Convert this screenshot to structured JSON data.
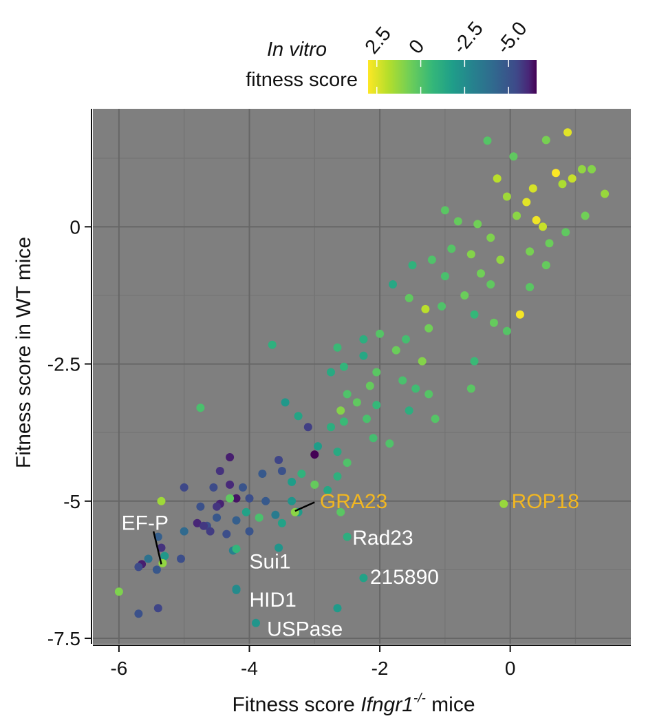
{
  "chart_data": {
    "type": "scatter",
    "xlabel_prefix": "Fitness score ",
    "xlabel_gene": "Ifngr1",
    "xlabel_superscript": "-/-",
    "xlabel_suffix": " mice",
    "ylabel": "Fitness score in WT mice",
    "xlim": [
      -6.4,
      1.85
    ],
    "ylim": [
      -7.6,
      2.15
    ],
    "x_ticks": [
      -6,
      -4,
      -2,
      0
    ],
    "x_tick_labels": [
      "-6",
      "-4",
      "-2",
      "0"
    ],
    "y_ticks": [
      0,
      -2.5,
      -5,
      -7.5
    ],
    "y_tick_labels": [
      "0",
      "-2.5",
      "-5",
      "-7.5"
    ],
    "grid": true,
    "background_color": "#7f7f7f",
    "colorbar": {
      "title_line1": "In vitro",
      "title_line2": "fitness score",
      "tick_labels": [
        "2.5",
        "0",
        "-2.5",
        "-5.0"
      ],
      "tick_values": [
        2.5,
        0,
        -2.5,
        -5.0
      ],
      "range": [
        3.0,
        -6.6
      ],
      "colormap": "viridis (reversed)",
      "placement": "top"
    },
    "points": [
      {
        "x": 0.88,
        "y": 1.72,
        "c": 2.6
      },
      {
        "x": -0.35,
        "y": 1.57,
        "c": 0.4
      },
      {
        "x": 0.55,
        "y": 1.58,
        "c": 1.0
      },
      {
        "x": 0.05,
        "y": 1.28,
        "c": 0.6
      },
      {
        "x": 1.1,
        "y": 1.05,
        "c": 1.4
      },
      {
        "x": 1.25,
        "y": 1.05,
        "c": 1.2
      },
      {
        "x": 0.7,
        "y": 0.98,
        "c": 3.0
      },
      {
        "x": 0.95,
        "y": 0.88,
        "c": 2.2
      },
      {
        "x": -0.2,
        "y": 0.88,
        "c": 2.0
      },
      {
        "x": 0.8,
        "y": 0.78,
        "c": 1.8
      },
      {
        "x": 1.45,
        "y": 0.6,
        "c": 1.5
      },
      {
        "x": 0.35,
        "y": 0.7,
        "c": 2.4
      },
      {
        "x": -0.05,
        "y": 0.55,
        "c": 1.6
      },
      {
        "x": 0.25,
        "y": 0.45,
        "c": 2.6
      },
      {
        "x": 0.4,
        "y": 0.12,
        "c": 2.8
      },
      {
        "x": 0.5,
        "y": 0.0,
        "c": 2.2
      },
      {
        "x": 0.1,
        "y": 0.2,
        "c": 1.3
      },
      {
        "x": -0.5,
        "y": 0.05,
        "c": 0.9
      },
      {
        "x": -0.8,
        "y": 0.1,
        "c": 0.7
      },
      {
        "x": -1.0,
        "y": 0.3,
        "c": 0.5
      },
      {
        "x": -0.3,
        "y": -0.2,
        "c": 1.1
      },
      {
        "x": 0.6,
        "y": -0.3,
        "c": 0.8
      },
      {
        "x": 1.15,
        "y": 0.2,
        "c": 0.9
      },
      {
        "x": 0.85,
        "y": -0.1,
        "c": 0.6
      },
      {
        "x": -0.9,
        "y": -0.4,
        "c": 0.4
      },
      {
        "x": -1.2,
        "y": -0.6,
        "c": 0.3
      },
      {
        "x": -0.6,
        "y": -0.5,
        "c": 1.2
      },
      {
        "x": -0.15,
        "y": -0.6,
        "c": 1.4
      },
      {
        "x": 0.3,
        "y": -0.45,
        "c": 1.0
      },
      {
        "x": 0.55,
        "y": -0.7,
        "c": 0.7
      },
      {
        "x": -0.45,
        "y": -0.85,
        "c": 0.9
      },
      {
        "x": -1.0,
        "y": -0.9,
        "c": 0.2
      },
      {
        "x": -1.5,
        "y": -0.7,
        "c": -0.4
      },
      {
        "x": -1.8,
        "y": -1.05,
        "c": -0.9
      },
      {
        "x": -0.3,
        "y": -1.05,
        "c": 0.6
      },
      {
        "x": 0.3,
        "y": -1.1,
        "c": 0.5
      },
      {
        "x": -0.7,
        "y": -1.25,
        "c": 0.8
      },
      {
        "x": -1.05,
        "y": -1.45,
        "c": 0.3
      },
      {
        "x": 0.15,
        "y": -1.6,
        "c": 2.9
      },
      {
        "x": -1.3,
        "y": -1.5,
        "c": 2.0
      },
      {
        "x": -1.55,
        "y": -1.3,
        "c": 0.6
      },
      {
        "x": -0.55,
        "y": -1.6,
        "c": -0.2
      },
      {
        "x": -0.25,
        "y": -1.75,
        "c": 0.7
      },
      {
        "x": -0.05,
        "y": -1.9,
        "c": 0.4
      },
      {
        "x": -1.25,
        "y": -1.85,
        "c": 0.9
      },
      {
        "x": -1.6,
        "y": -2.05,
        "c": 0.1
      },
      {
        "x": -2.0,
        "y": -1.95,
        "c": 0.4
      },
      {
        "x": -1.75,
        "y": -2.25,
        "c": 0.8
      },
      {
        "x": -1.35,
        "y": -2.45,
        "c": 1.2
      },
      {
        "x": -0.55,
        "y": -2.45,
        "c": -0.1
      },
      {
        "x": -2.25,
        "y": -2.05,
        "c": -0.6
      },
      {
        "x": -2.25,
        "y": -2.35,
        "c": -0.9
      },
      {
        "x": -2.55,
        "y": -2.55,
        "c": -0.3
      },
      {
        "x": -2.05,
        "y": -2.65,
        "c": 0.5
      },
      {
        "x": -1.65,
        "y": -2.8,
        "c": 0.2
      },
      {
        "x": -1.45,
        "y": -2.95,
        "c": 0.0
      },
      {
        "x": -2.75,
        "y": -2.65,
        "c": -0.8
      },
      {
        "x": -2.15,
        "y": -2.9,
        "c": 0.7
      },
      {
        "x": -2.5,
        "y": -3.05,
        "c": 0.3
      },
      {
        "x": -2.35,
        "y": -3.2,
        "c": 0.6
      },
      {
        "x": -2.05,
        "y": -3.25,
        "c": -0.2
      },
      {
        "x": -1.25,
        "y": -3.05,
        "c": 0.4
      },
      {
        "x": -0.6,
        "y": -2.95,
        "c": 0.5
      },
      {
        "x": -2.6,
        "y": -3.35,
        "c": 1.2
      },
      {
        "x": -3.45,
        "y": -3.2,
        "c": -1.5
      },
      {
        "x": -2.2,
        "y": -3.5,
        "c": 0.2
      },
      {
        "x": -1.55,
        "y": -3.35,
        "c": -0.6
      },
      {
        "x": -1.15,
        "y": -3.5,
        "c": 0.4
      },
      {
        "x": -2.55,
        "y": -3.55,
        "c": -0.1
      },
      {
        "x": -3.25,
        "y": -3.45,
        "c": -1.0
      },
      {
        "x": -2.75,
        "y": -3.65,
        "c": -0.6
      },
      {
        "x": -3.1,
        "y": -3.65,
        "c": -4.8
      },
      {
        "x": -2.1,
        "y": -3.85,
        "c": 0.1
      },
      {
        "x": -1.85,
        "y": -3.95,
        "c": 0.3
      },
      {
        "x": -2.95,
        "y": -4.0,
        "c": -1.3
      },
      {
        "x": -2.65,
        "y": -4.1,
        "c": -0.8
      },
      {
        "x": -3.0,
        "y": -4.15,
        "c": -6.6
      },
      {
        "x": -4.3,
        "y": -4.2,
        "c": -5.8
      },
      {
        "x": -3.55,
        "y": -4.25,
        "c": -4.6
      },
      {
        "x": -2.5,
        "y": -4.3,
        "c": 0.3
      },
      {
        "x": -4.45,
        "y": -4.45,
        "c": -5.2
      },
      {
        "x": -3.8,
        "y": -4.5,
        "c": -3.9
      },
      {
        "x": -3.5,
        "y": -4.45,
        "c": -4.2
      },
      {
        "x": -3.2,
        "y": -4.5,
        "c": -0.4
      },
      {
        "x": -2.65,
        "y": -4.55,
        "c": -0.5
      },
      {
        "x": -3.0,
        "y": -4.7,
        "c": 0.7
      },
      {
        "x": -3.35,
        "y": -4.65,
        "c": -1.3
      },
      {
        "x": -4.3,
        "y": -4.7,
        "c": -5.5
      },
      {
        "x": -4.55,
        "y": -4.75,
        "c": -4.4
      },
      {
        "x": -4.1,
        "y": -4.75,
        "c": -4.1
      },
      {
        "x": -5.0,
        "y": -4.75,
        "c": -4.5
      },
      {
        "x": -2.8,
        "y": -4.8,
        "c": -0.9
      },
      {
        "x": -4.2,
        "y": -4.95,
        "c": -6.1
      },
      {
        "x": -4.0,
        "y": -4.95,
        "c": -4.3
      },
      {
        "x": -4.3,
        "y": -4.95,
        "c": 0.6
      },
      {
        "x": -3.35,
        "y": -5.0,
        "c": -1.6
      },
      {
        "x": -3.75,
        "y": -5.0,
        "c": -3.9
      },
      {
        "x": -4.45,
        "y": -5.05,
        "c": -5.7
      },
      {
        "x": -4.75,
        "y": -5.1,
        "c": -4.2
      },
      {
        "x": -4.5,
        "y": -5.1,
        "c": -5.1
      },
      {
        "x": -3.25,
        "y": -5.2,
        "c": -1.4
      },
      {
        "x": -3.6,
        "y": -5.25,
        "c": -2.6
      },
      {
        "x": -2.6,
        "y": -5.2,
        "c": 0.5
      },
      {
        "x": -3.85,
        "y": -5.3,
        "c": 0.2
      },
      {
        "x": -4.05,
        "y": -5.2,
        "c": -1.1
      },
      {
        "x": -4.5,
        "y": -5.3,
        "c": -4.0
      },
      {
        "x": -4.2,
        "y": -5.35,
        "c": -3.7
      },
      {
        "x": -3.5,
        "y": -5.4,
        "c": -1.1
      },
      {
        "x": -4.8,
        "y": -5.4,
        "c": -5.6
      },
      {
        "x": -4.65,
        "y": -5.45,
        "c": -4.3
      },
      {
        "x": -4.7,
        "y": -5.45,
        "c": -5.0
      },
      {
        "x": -5.0,
        "y": -5.55,
        "c": -3.3
      },
      {
        "x": -4.6,
        "y": -5.55,
        "c": -4.9
      },
      {
        "x": -4.0,
        "y": -5.55,
        "c": -4.1
      },
      {
        "x": -4.35,
        "y": -5.6,
        "c": -4.3
      },
      {
        "x": -5.4,
        "y": -5.65,
        "c": -3.7
      },
      {
        "x": -5.35,
        "y": -5.85,
        "c": -5.2
      },
      {
        "x": -5.05,
        "y": -6.05,
        "c": -4.3
      },
      {
        "x": -5.55,
        "y": -6.05,
        "c": -3.0
      },
      {
        "x": -5.65,
        "y": -6.15,
        "c": -5.8
      },
      {
        "x": -5.3,
        "y": -6.0,
        "c": -1.5
      },
      {
        "x": -5.7,
        "y": -6.2,
        "c": -4.4
      },
      {
        "x": -5.42,
        "y": -6.25,
        "c": -4.0
      },
      {
        "x": -4.25,
        "y": -5.9,
        "c": -2.4
      },
      {
        "x": -3.55,
        "y": -5.85,
        "c": -1.6
      },
      {
        "x": -4.2,
        "y": -6.6,
        "c": -1.9
      },
      {
        "x": -2.65,
        "y": -6.95,
        "c": -1.4
      },
      {
        "x": -5.4,
        "y": -6.95,
        "c": -4.6
      },
      {
        "x": -5.7,
        "y": -7.05,
        "c": -4.2
      },
      {
        "x": -6.0,
        "y": -6.65,
        "c": 1.1
      },
      {
        "x": -5.35,
        "y": -5.0,
        "c": 1.6
      },
      {
        "x": -5.33,
        "y": -6.13,
        "c": 1.4
      },
      {
        "x": -3.65,
        "y": -2.15,
        "c": -0.5
      },
      {
        "x": -4.75,
        "y": -3.3,
        "c": 0.2
      },
      {
        "x": -2.65,
        "y": -2.2,
        "c": -0.1
      },
      {
        "x": -3.3,
        "y": -5.2,
        "c": 1.3
      },
      {
        "x": -0.1,
        "y": -5.05,
        "c": 1.5
      },
      {
        "x": -2.5,
        "y": -5.65,
        "c": -0.6
      },
      {
        "x": -2.25,
        "y": -6.4,
        "c": -1.1
      },
      {
        "x": -4.2,
        "y": -5.87,
        "c": -0.3
      },
      {
        "x": -4.2,
        "y": -6.62,
        "c": -2.0
      },
      {
        "x": -3.9,
        "y": -7.22,
        "c": -1.6
      }
    ],
    "annotations": [
      {
        "label": "GRA23",
        "color": "#f2b721",
        "tx": -2.92,
        "ty": -5.0,
        "anchor": "start",
        "line": [
          -3.3,
          -5.18,
          -3.0,
          -5.02
        ]
      },
      {
        "label": "ROP18",
        "color": "#f2b721",
        "tx": 0.02,
        "ty": -5.0,
        "anchor": "start",
        "line": null
      },
      {
        "label": "EF-P",
        "color": "#ffffff",
        "tx": -5.6,
        "ty": -5.4,
        "anchor": "middle",
        "line": [
          -5.47,
          -5.55,
          -5.35,
          -6.15
        ]
      },
      {
        "label": "Rad23",
        "color": "#ffffff",
        "tx": -2.42,
        "ty": -5.67,
        "anchor": "start",
        "line": null
      },
      {
        "label": "Sui1",
        "color": "#ffffff",
        "tx": -4.0,
        "ty": -6.1,
        "anchor": "start",
        "line": null
      },
      {
        "label": "215890",
        "color": "#ffffff",
        "tx": -2.15,
        "ty": -6.38,
        "anchor": "start",
        "line": null
      },
      {
        "label": "HID1",
        "color": "#ffffff",
        "tx": -4.0,
        "ty": -6.8,
        "anchor": "start",
        "line": null
      },
      {
        "label": "USPase",
        "color": "#ffffff",
        "tx": -3.73,
        "ty": -7.33,
        "anchor": "start",
        "line": null
      }
    ]
  }
}
